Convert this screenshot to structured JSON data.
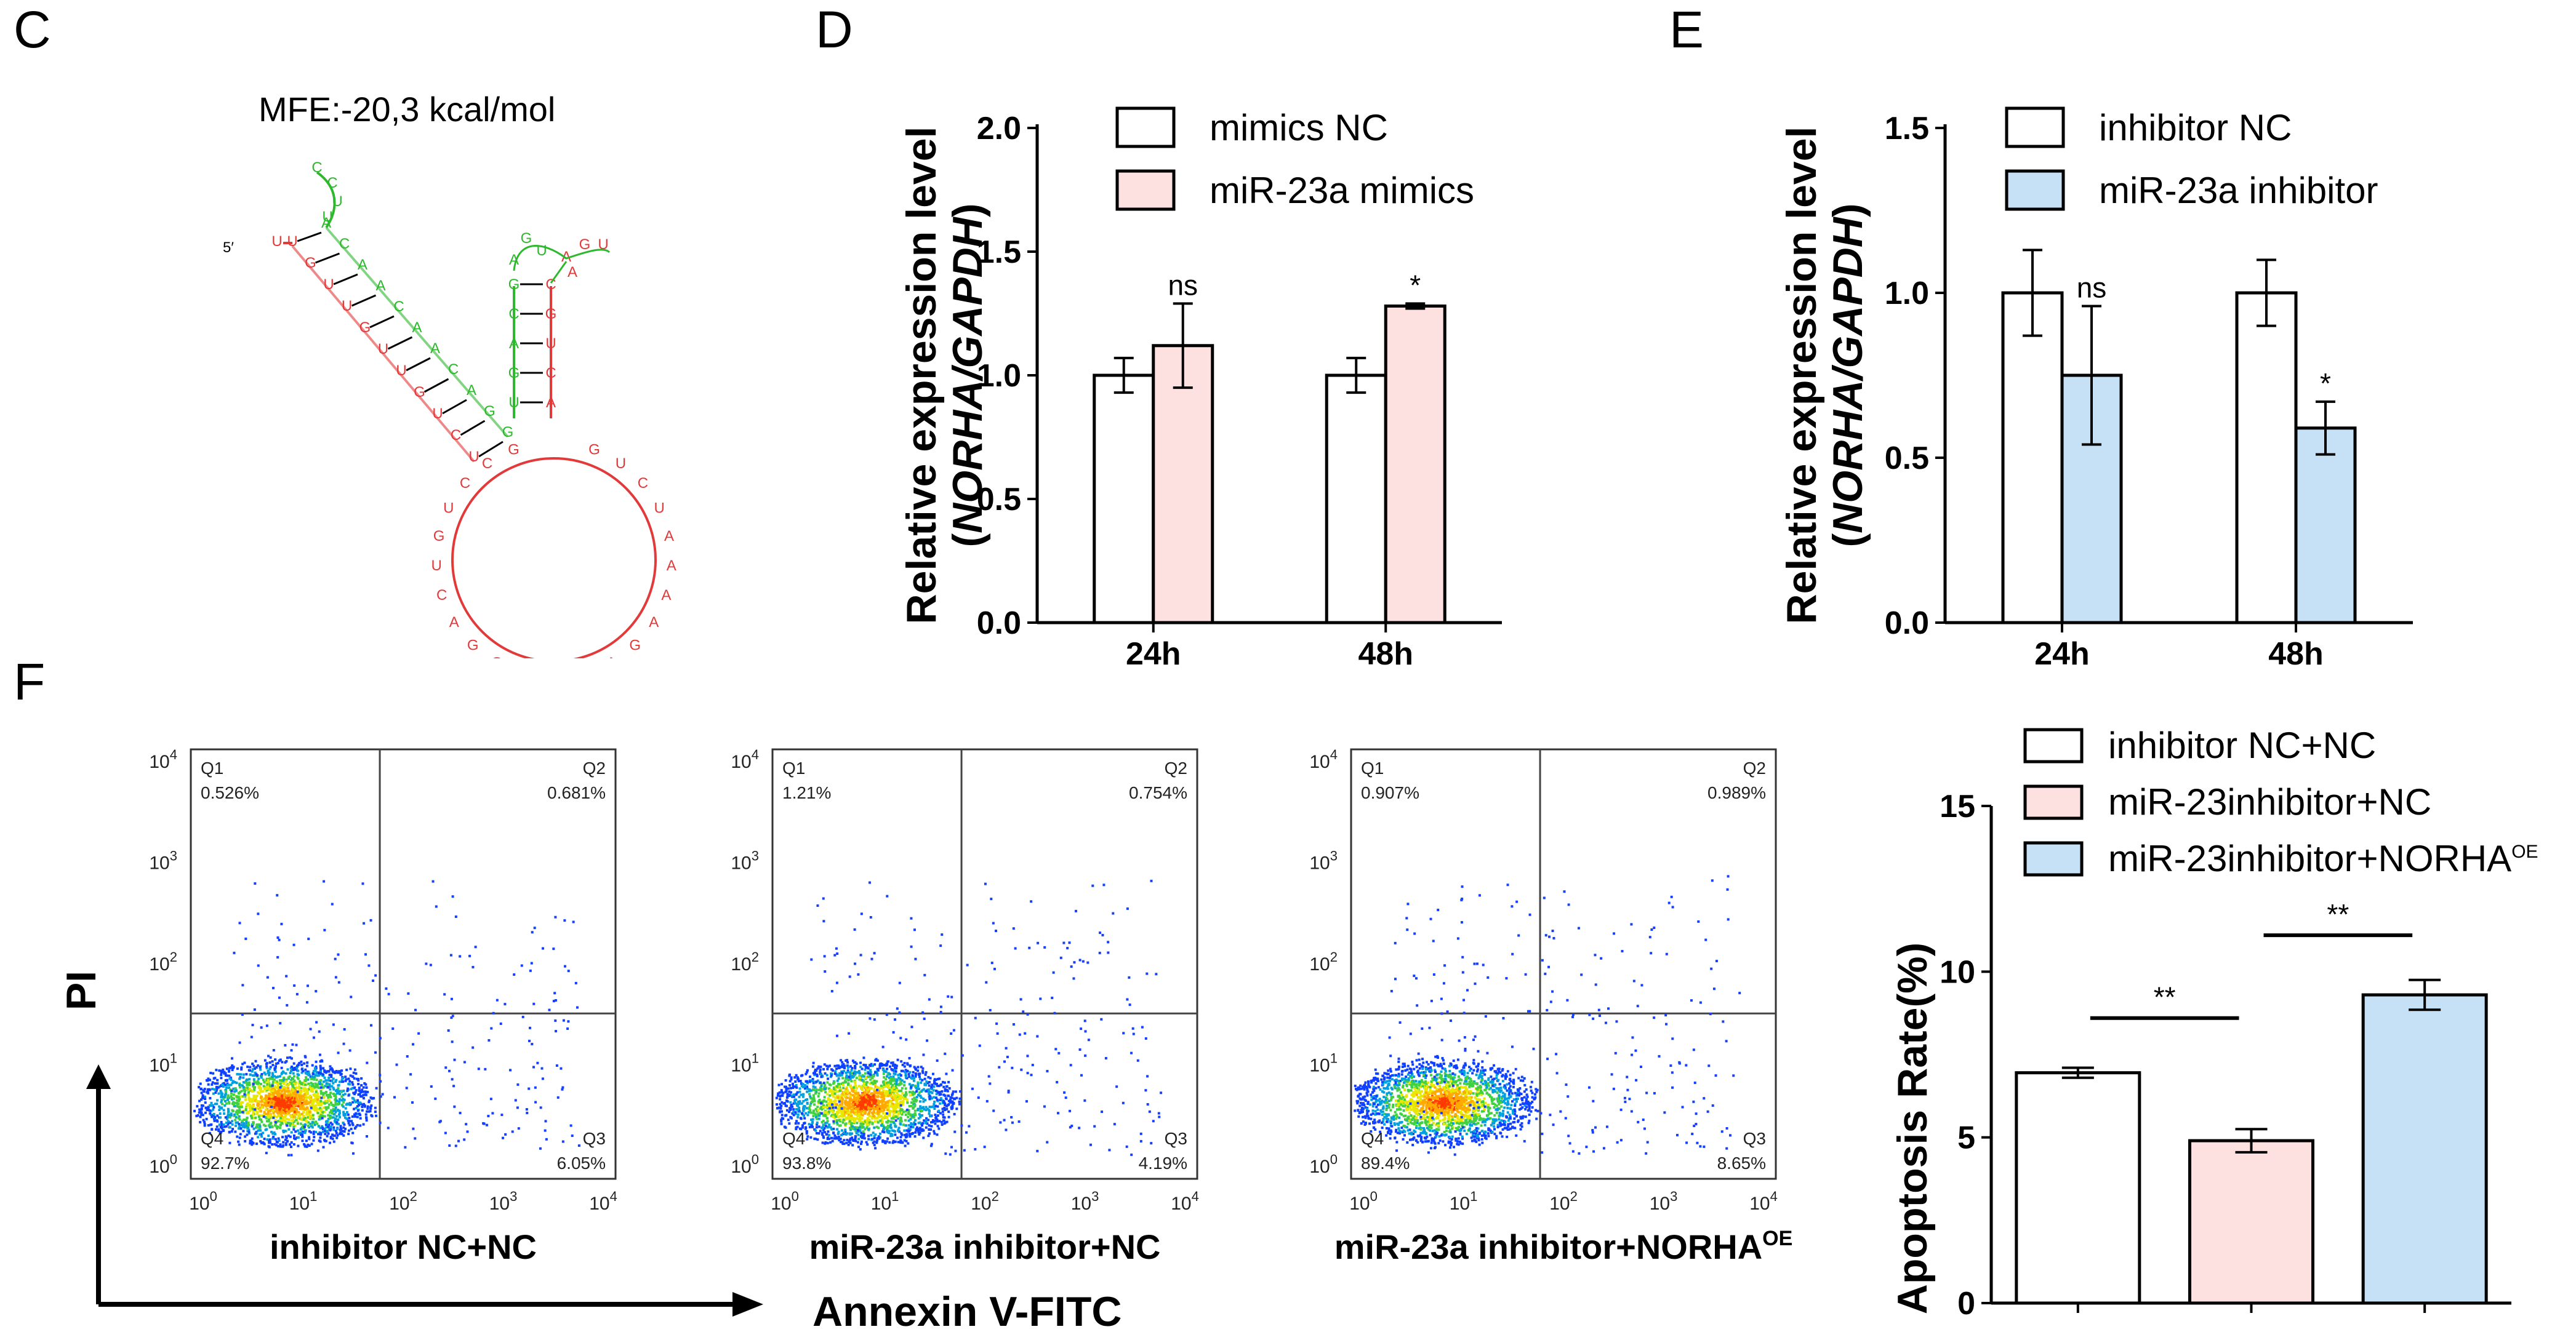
{
  "panels": {
    "C": "C",
    "D": "D",
    "E": "E",
    "F": "F"
  },
  "panel_c": {
    "mfe_label": "MFE:-20,3 kcal/mol",
    "five_prime": "5′",
    "colors": {
      "strand_a": "#e23a3a",
      "strand_b": "#2eb82e",
      "pairs": "#000000"
    }
  },
  "y_label_line1": "Relative expression level",
  "y_label_line2": "NORHA/GAPDH",
  "colors": {
    "white_bar": "#ffffff",
    "pink_bar": "#fde0e0",
    "blue_bar": "#c6e0f6",
    "outline": "#000000",
    "flow_line": "#333333"
  },
  "chart_data": [
    {
      "id": "D",
      "type": "bar",
      "categories": [
        "24h",
        "48h"
      ],
      "series": [
        {
          "name": "mimics NC",
          "values": [
            1.0,
            1.0
          ],
          "errors": [
            0.07,
            0.07
          ],
          "color": "#ffffff"
        },
        {
          "name": "miR-23a mimics",
          "values": [
            1.12,
            1.28
          ],
          "errors": [
            0.17,
            0.01
          ],
          "color": "#fde0e0"
        }
      ],
      "significance": [
        {
          "category": "24h",
          "label": "ns"
        },
        {
          "category": "48h",
          "label": "*"
        }
      ],
      "ylim": [
        0,
        2.0
      ],
      "yticks": [
        "0.0",
        "0.5",
        "1.0",
        "1.5",
        "2.0"
      ],
      "ylabel": "Relative expression level (NORHA/GAPDH)",
      "legend": "top-left"
    },
    {
      "id": "E",
      "type": "bar",
      "categories": [
        "24h",
        "48h"
      ],
      "series": [
        {
          "name": "inhibitor NC",
          "values": [
            1.0,
            1.0
          ],
          "errors": [
            0.13,
            0.1
          ],
          "color": "#ffffff"
        },
        {
          "name": "miR-23a inhibitor",
          "values": [
            0.75,
            0.59
          ],
          "errors": [
            0.21,
            0.08
          ],
          "color": "#c6e0f6"
        }
      ],
      "significance": [
        {
          "category": "24h",
          "label": "ns"
        },
        {
          "category": "48h",
          "label": "*"
        }
      ],
      "ylim": [
        0,
        1.5
      ],
      "yticks": [
        "0.0",
        "0.5",
        "1.0",
        "1.5"
      ],
      "ylabel": "Relative expression level (NORHA/GAPDH)",
      "legend": "top-left"
    },
    {
      "id": "F-bar",
      "type": "bar",
      "categories": [
        "inhibitor NC+NC",
        "miR-23inhibitor+NC",
        "miR-23inhibitor+NORHA"
      ],
      "series": [
        {
          "name": "Apoptosis Rate",
          "values": [
            6.95,
            4.9,
            9.3
          ],
          "errors": [
            0.15,
            0.35,
            0.45
          ]
        }
      ],
      "colors": [
        "#ffffff",
        "#fde0e0",
        "#c6e0f6"
      ],
      "legend_labels": [
        "inhibitor NC+NC",
        "miR-23inhibitor+NC",
        "miR-23inhibitor+NORHA"
      ],
      "legend_superscript": "OE",
      "significance": [
        {
          "from": 0,
          "to": 1,
          "label": "**"
        },
        {
          "from": 1,
          "to": 2,
          "label": "**"
        }
      ],
      "ylim": [
        0,
        15
      ],
      "yticks": [
        "0",
        "5",
        "10",
        "15"
      ],
      "ylabel": "Apoptosis Rate(%)",
      "legend": "top"
    }
  ],
  "flow": {
    "tick_labels": [
      "10",
      "10",
      "10",
      "10",
      "10"
    ],
    "tick_exps": [
      "0",
      "1",
      "2",
      "3",
      "4"
    ],
    "quadrant_names": [
      "Q1",
      "Q2",
      "Q3",
      "Q4"
    ],
    "plots": [
      {
        "caption": "inhibitor NC+NC",
        "caption_sup": "",
        "q1": "0.526%",
        "q2": "0.681%",
        "q3": "6.05%",
        "q4": "92.7%",
        "seed": 11
      },
      {
        "caption": "miR-23a inhibitor+NC",
        "caption_sup": "",
        "q1": "1.21%",
        "q2": "0.754%",
        "q3": "4.19%",
        "q4": "93.8%",
        "seed": 23
      },
      {
        "caption": "miR-23a inhibitor+NORHA",
        "caption_sup": "OE",
        "q1": "0.907%",
        "q2": "0.989%",
        "q3": "8.65%",
        "q4": "89.4%",
        "seed": 37
      }
    ],
    "y_axis_label": "PI",
    "x_axis_label": "Annexin V-FITC"
  }
}
